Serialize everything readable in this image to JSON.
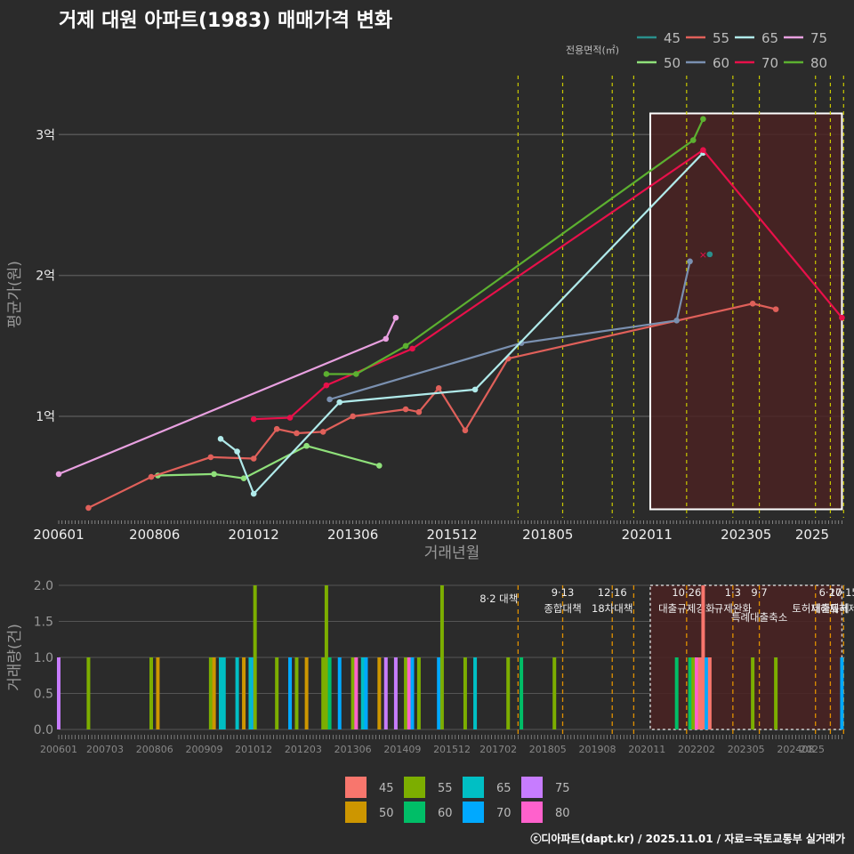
{
  "title": "거제 대원 아파트(1983) 매매가격 변화",
  "legend_title": "전용면적(㎡)",
  "credit": "ⓒ디아파트(dapt.kr) / 2025.11.01 / 자료=국토교통부 실거래가",
  "colors": {
    "45": "#2a8f8c",
    "50": "#8fe07a",
    "55": "#e0605a",
    "60": "#7a90b0",
    "65": "#b0eaea",
    "70": "#e8104a",
    "75": "#e8a0e0",
    "80": "#5cb030"
  },
  "bar_colors": {
    "45": "#f8766d",
    "50": "#cd9600",
    "55": "#7cae00",
    "60": "#00be67",
    "65": "#00bfc4",
    "70": "#00a9ff",
    "75": "#c77cff",
    "80": "#ff61cc"
  },
  "vlines": [
    {
      "t": 2017.583,
      "top": "8·2 대책",
      "bottom": ""
    },
    {
      "t": 2018.708,
      "top": "9·13",
      "bottom": "종합대책"
    },
    {
      "t": 2019.958,
      "top": "12·16",
      "bottom": "18차대책"
    },
    {
      "t": 2020.5,
      "top": "",
      "bottom": ""
    },
    {
      "t": 2021.833,
      "top": "10·26",
      "bottom": "대출규제강화"
    },
    {
      "t": 2023.0,
      "top": "1·3",
      "bottom": "규제완화"
    },
    {
      "t": 2023.667,
      "top": "9·7",
      "bottom": "특례대출축소"
    },
    {
      "t": 2025.083,
      "top": "",
      "bottom": "토허제해제"
    },
    {
      "t": 2025.458,
      "top": "6·27",
      "bottom": "대출규제"
    },
    {
      "t": 2025.792,
      "top": "10·15",
      "bottom": "토허제"
    }
  ],
  "chart_data": [
    {
      "type": "line",
      "title": "거제 대원 아파트(1983) 매매가격 변화",
      "xlabel": "거래년월",
      "ylabel": "평균가(원)",
      "xlim": [
        2006.0,
        2025.83
      ],
      "ylim": [
        0.28,
        3.45
      ],
      "x_ticks": [
        "200601",
        "200806",
        "201012",
        "201306",
        "201512",
        "201805",
        "202011",
        "202305",
        "2025"
      ],
      "y_ticks": [
        "1억",
        "2억",
        "3억"
      ],
      "y_tick_values": [
        1,
        2,
        3
      ],
      "highlight_range": [
        2020.917,
        2025.75
      ],
      "series": [
        {
          "name": "50",
          "points": [
            [
              2008.5,
              0.58
            ],
            [
              2009.917,
              0.59
            ],
            [
              2010.667,
              0.56
            ],
            [
              2012.25,
              0.79
            ],
            [
              2014.083,
              0.65
            ]
          ]
        },
        {
          "name": "55",
          "points": [
            [
              2006.75,
              0.35
            ],
            [
              2008.333,
              0.57
            ],
            [
              2009.833,
              0.71
            ],
            [
              2010.917,
              0.7
            ],
            [
              2011.5,
              0.91
            ],
            [
              2012.0,
              0.88
            ],
            [
              2012.667,
              0.89
            ],
            [
              2013.417,
              1.0
            ],
            [
              2014.75,
              1.05
            ],
            [
              2015.083,
              1.03
            ],
            [
              2015.583,
              1.2
            ],
            [
              2016.25,
              0.9
            ],
            [
              2017.333,
              1.41
            ],
            [
              2023.5,
              1.8
            ],
            [
              2024.083,
              1.76
            ]
          ]
        },
        {
          "name": "60",
          "points": [
            [
              2012.833,
              1.12
            ],
            [
              2017.667,
              1.52
            ],
            [
              2021.583,
              1.68
            ],
            [
              2021.917,
              2.1
            ]
          ]
        },
        {
          "name": "65",
          "points": [
            [
              2010.083,
              0.84
            ],
            [
              2010.5,
              0.75
            ],
            [
              2010.917,
              0.45
            ],
            [
              2013.083,
              1.1
            ],
            [
              2016.5,
              1.19
            ],
            [
              2022.25,
              2.87
            ]
          ]
        },
        {
          "name": "70",
          "points": [
            [
              2010.917,
              0.98
            ],
            [
              2011.833,
              0.99
            ],
            [
              2012.75,
              1.22
            ],
            [
              2014.917,
              1.48
            ],
            [
              2022.25,
              2.89
            ],
            [
              2025.75,
              1.7
            ]
          ]
        },
        {
          "name": "75",
          "points": [
            [
              2006.0,
              0.59
            ],
            [
              2014.25,
              1.55
            ],
            [
              2014.5,
              1.7
            ]
          ]
        },
        {
          "name": "80",
          "points": [
            [
              2012.75,
              1.3
            ],
            [
              2013.5,
              1.3
            ],
            [
              2014.75,
              1.5
            ],
            [
              2022.0,
              2.96
            ],
            [
              2022.25,
              3.11
            ]
          ]
        },
        {
          "name": "45",
          "points": [
            [
              2022.417,
              2.15
            ]
          ]
        }
      ],
      "legend": [
        "45",
        "55",
        "65",
        "75",
        "50",
        "60",
        "70",
        "80"
      ]
    },
    {
      "type": "bar",
      "xlabel": "",
      "ylabel": "거래량(건)",
      "ylim": [
        0,
        2.0
      ],
      "y_ticks": [
        "0.0",
        "0.5",
        "1.0",
        "1.5",
        "2.0"
      ],
      "x_ticks": [
        "200601",
        "200703",
        "200806",
        "200909",
        "201012",
        "201203",
        "201306",
        "201409",
        "201512",
        "201702",
        "201805",
        "201908",
        "202011",
        "202202",
        "202305",
        "202408",
        "2025"
      ],
      "legend": [
        "45",
        "50",
        "55",
        "60",
        "65",
        "70",
        "75",
        "80"
      ],
      "bars": [
        {
          "t": 2006.0,
          "v": 1,
          "s": "75"
        },
        {
          "t": 2006.75,
          "v": 1,
          "s": "55"
        },
        {
          "t": 2008.333,
          "v": 1,
          "s": "55"
        },
        {
          "t": 2008.5,
          "v": 1,
          "s": "50"
        },
        {
          "t": 2009.833,
          "v": 1,
          "s": "55"
        },
        {
          "t": 2009.917,
          "v": 1,
          "s": "50"
        },
        {
          "t": 2010.083,
          "v": 1,
          "s": "65"
        },
        {
          "t": 2010.167,
          "v": 1,
          "s": "65"
        },
        {
          "t": 2010.5,
          "v": 1,
          "s": "65"
        },
        {
          "t": 2010.667,
          "v": 1,
          "s": "50"
        },
        {
          "t": 2010.833,
          "v": 1,
          "s": "65"
        },
        {
          "t": 2010.917,
          "v": 1,
          "s": "70"
        },
        {
          "t": 2010.95,
          "v": 2,
          "s": "55"
        },
        {
          "t": 2011.5,
          "v": 1,
          "s": "55"
        },
        {
          "t": 2011.833,
          "v": 1,
          "s": "70"
        },
        {
          "t": 2012.0,
          "v": 1,
          "s": "55"
        },
        {
          "t": 2012.25,
          "v": 1,
          "s": "50"
        },
        {
          "t": 2012.667,
          "v": 1,
          "s": "55"
        },
        {
          "t": 2012.75,
          "v": 2,
          "s": "55"
        },
        {
          "t": 2012.833,
          "v": 1,
          "s": "60"
        },
        {
          "t": 2013.083,
          "v": 1,
          "s": "70"
        },
        {
          "t": 2013.417,
          "v": 1,
          "s": "55"
        },
        {
          "t": 2013.5,
          "v": 1,
          "s": "80"
        },
        {
          "t": 2013.667,
          "v": 1,
          "s": "65"
        },
        {
          "t": 2013.75,
          "v": 1,
          "s": "70"
        },
        {
          "t": 2014.083,
          "v": 1,
          "s": "50"
        },
        {
          "t": 2014.25,
          "v": 1,
          "s": "75"
        },
        {
          "t": 2014.5,
          "v": 1,
          "s": "75"
        },
        {
          "t": 2014.75,
          "v": 1,
          "s": "55"
        },
        {
          "t": 2014.833,
          "v": 1,
          "s": "80"
        },
        {
          "t": 2014.917,
          "v": 1,
          "s": "70"
        },
        {
          "t": 2015.083,
          "v": 1,
          "s": "55"
        },
        {
          "t": 2015.583,
          "v": 1,
          "s": "70"
        },
        {
          "t": 2015.667,
          "v": 2,
          "s": "55"
        },
        {
          "t": 2016.25,
          "v": 1,
          "s": "55"
        },
        {
          "t": 2016.5,
          "v": 1,
          "s": "65"
        },
        {
          "t": 2017.333,
          "v": 1,
          "s": "55"
        },
        {
          "t": 2017.667,
          "v": 1,
          "s": "60"
        },
        {
          "t": 2018.5,
          "v": 1,
          "s": "55"
        },
        {
          "t": 2021.583,
          "v": 1,
          "s": "60"
        },
        {
          "t": 2021.917,
          "v": 1,
          "s": "60"
        },
        {
          "t": 2022.0,
          "v": 1,
          "s": "55"
        },
        {
          "t": 2022.083,
          "v": 1,
          "s": "80"
        },
        {
          "t": 2022.167,
          "v": 1,
          "s": "45"
        },
        {
          "t": 2022.25,
          "v": 2,
          "s": "45"
        },
        {
          "t": 2022.333,
          "v": 1,
          "s": "70"
        },
        {
          "t": 2022.417,
          "v": 1,
          "s": "45"
        },
        {
          "t": 2023.5,
          "v": 1,
          "s": "55"
        },
        {
          "t": 2024.083,
          "v": 1,
          "s": "55"
        },
        {
          "t": 2025.75,
          "v": 1,
          "s": "70"
        }
      ]
    }
  ]
}
